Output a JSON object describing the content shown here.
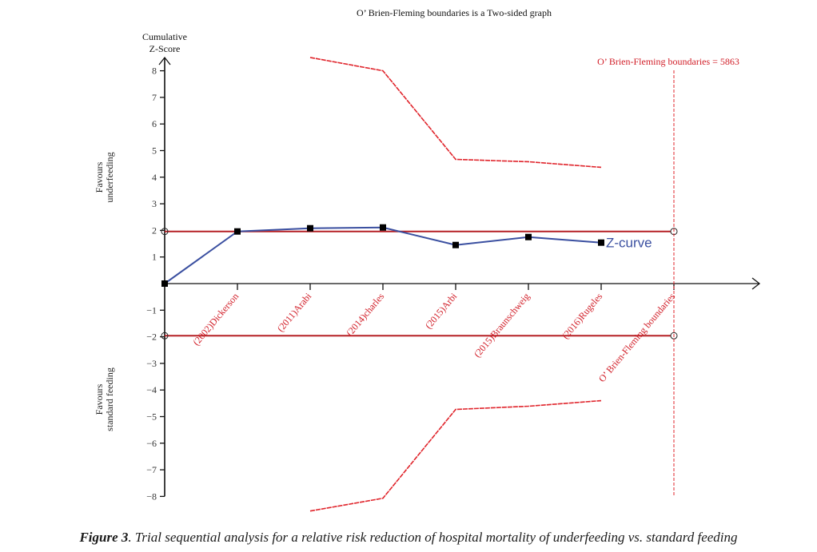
{
  "chart_data": {
    "type": "line",
    "title": "O’ Brien-Fleming boundaries is a Two-sided graph",
    "ylabel": "Cumulative Z-Score",
    "xlabel": "",
    "ylim": [
      -8,
      8
    ],
    "yticks": [
      8,
      7,
      6,
      5,
      4,
      3,
      2,
      1,
      -1,
      -2,
      -3,
      -4,
      -5,
      -6,
      -7,
      -8
    ],
    "grid": false,
    "region_labels": {
      "upper": [
        "Favours",
        "underfeeding"
      ],
      "lower": [
        "Favours",
        "standard feeding"
      ]
    },
    "categories": [
      "(2002)Dickerson",
      "(2011)Arabi",
      "(2014)charles",
      "(2015)Arbi",
      "(2015)Braunschweig",
      "(2016)Rugeles",
      "O’ Brien-Fleming boundaries"
    ],
    "conventional_boundaries": [
      1.96,
      -1.96
    ],
    "required_information_size_label": "O’ Brien-Fleming boundaries = 5863",
    "series": [
      {
        "name": "Z-curve",
        "color": "#3a4fa0",
        "x_index": [
          0,
          1,
          2,
          3,
          4,
          5,
          6
        ],
        "values": [
          0,
          1.96,
          2.08,
          2.11,
          1.45,
          1.75,
          1.54
        ]
      },
      {
        "name": "Upper O'Brien-Fleming boundary",
        "color": "#e0242b",
        "x_index": [
          2,
          3,
          4,
          5,
          6
        ],
        "values": [
          8.5,
          8.0,
          4.67,
          4.58,
          4.37
        ]
      },
      {
        "name": "Lower O'Brien-Fleming boundary",
        "color": "#e0242b",
        "x_index": [
          2,
          3,
          4,
          5,
          6
        ],
        "values": [
          -8.55,
          -8.07,
          -4.73,
          -4.61,
          -4.4
        ]
      }
    ]
  },
  "caption": {
    "label": "Figure 3",
    "text": ". Trial sequential analysis for a relative risk reduction of hospital mortality of underfeeding vs. standard feeding"
  }
}
